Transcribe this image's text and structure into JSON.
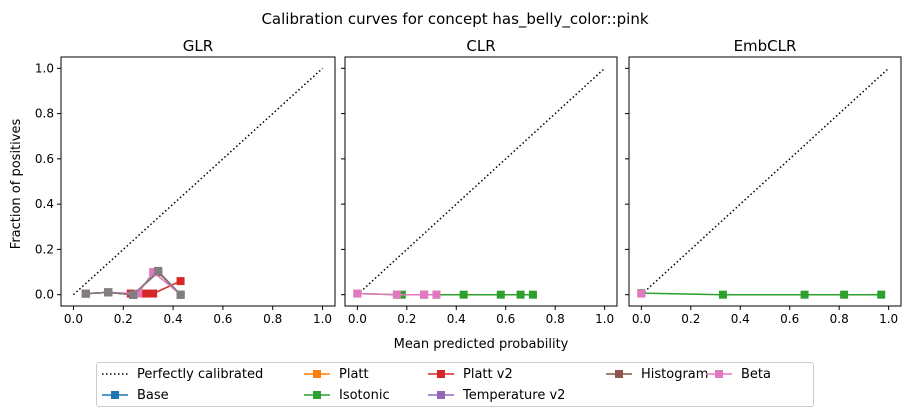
{
  "chart_data": {
    "type": "line",
    "suptitle": "Calibration curves for concept has_belly_color::pink",
    "xlabel": "Mean predicted probability",
    "ylabel": "Fraction of positives",
    "xlim": [
      -0.05,
      1.05
    ],
    "ylim": [
      -0.05,
      1.05
    ],
    "xticks": [
      "0.0",
      "0.2",
      "0.4",
      "0.6",
      "0.8",
      "1.0"
    ],
    "yticks": [
      "0.0",
      "0.2",
      "0.4",
      "0.6",
      "0.8",
      "1.0"
    ],
    "grid": false,
    "legend_position": "bottom",
    "panels": [
      {
        "title": "GLR",
        "series": [
          {
            "name": "Base",
            "color": "#1f77b4",
            "x": [
              0.05,
              0.14,
              0.24,
              0.34,
              0.43
            ],
            "y": [
              0.005,
              0.01,
              0.0,
              0.1,
              0.0
            ]
          },
          {
            "name": "Platt",
            "color": "#ff7f0e",
            "x": [
              0.05,
              0.14,
              0.24,
              0.34,
              0.43
            ],
            "y": [
              0.005,
              0.01,
              0.0,
              0.1,
              0.0
            ]
          },
          {
            "name": "Isotonic",
            "color": "#2ca02c",
            "x": [
              0.05,
              0.14,
              0.24,
              0.34,
              0.43
            ],
            "y": [
              0.005,
              0.01,
              0.0,
              0.1,
              0.0
            ]
          },
          {
            "name": "Platt v2",
            "color": "#d62728",
            "x": [
              0.05,
              0.14,
              0.23,
              0.29,
              0.32,
              0.43
            ],
            "y": [
              0.005,
              0.01,
              0.005,
              0.005,
              0.005,
              0.06
            ]
          },
          {
            "name": "Temperature v2",
            "color": "#9467bd",
            "x": [
              0.05,
              0.14,
              0.24,
              0.34,
              0.43
            ],
            "y": [
              0.005,
              0.01,
              0.0,
              0.1,
              0.0
            ]
          },
          {
            "name": "Histogram",
            "color": "#8c564b",
            "x": [
              0.05,
              0.14,
              0.24,
              0.34,
              0.43
            ],
            "y": [
              0.005,
              0.01,
              0.0,
              0.1,
              0.0
            ]
          },
          {
            "name": "Beta",
            "color": "#e377c2",
            "x": [
              0.05,
              0.14,
              0.26,
              0.32,
              0.43
            ],
            "y": [
              0.005,
              0.01,
              0.005,
              0.1,
              0.0
            ]
          },
          {
            "name": "",
            "color": "#7f7f7f",
            "x": [
              0.05,
              0.14,
              0.24,
              0.34,
              0.43
            ],
            "y": [
              0.005,
              0.01,
              0.0,
              0.105,
              0.0
            ]
          }
        ]
      },
      {
        "title": "CLR",
        "series": [
          {
            "name": "Isotonic",
            "color": "#2ca02c",
            "x": [
              0.0,
              0.16,
              0.18,
              0.27,
              0.32,
              0.43,
              0.58,
              0.66,
              0.71
            ],
            "y": [
              0.005,
              0.0,
              0.0,
              0.0,
              0.0,
              0.0,
              0.0,
              0.0,
              0.0
            ]
          },
          {
            "name": "Beta",
            "color": "#e377c2",
            "x": [
              0.0,
              0.16,
              0.27,
              0.32
            ],
            "y": [
              0.005,
              0.0,
              0.0,
              0.0
            ]
          }
        ]
      },
      {
        "title": "EmbCLR",
        "series": [
          {
            "name": "Isotonic",
            "color": "#2ca02c",
            "x": [
              0.0,
              0.33,
              0.66,
              0.82,
              0.97
            ],
            "y": [
              0.007,
              0.0,
              0.0,
              0.0,
              0.0
            ]
          },
          {
            "name": "Beta",
            "color": "#e377c2",
            "x": [
              0.0
            ],
            "y": [
              0.005
            ]
          }
        ]
      }
    ],
    "legend": [
      {
        "name": "Perfectly calibrated",
        "color": "#000000",
        "style": "dotted"
      },
      {
        "name": "Base",
        "color": "#1f77b4",
        "style": "square"
      },
      {
        "name": "Platt",
        "color": "#ff7f0e",
        "style": "square"
      },
      {
        "name": "Isotonic",
        "color": "#2ca02c",
        "style": "square"
      },
      {
        "name": "Platt v2",
        "color": "#d62728",
        "style": "square"
      },
      {
        "name": "Temperature v2",
        "color": "#9467bd",
        "style": "square"
      },
      {
        "name": "Histogram",
        "color": "#8c564b",
        "style": "square"
      },
      {
        "name": "Beta",
        "color": "#e377c2",
        "style": "square"
      }
    ]
  }
}
